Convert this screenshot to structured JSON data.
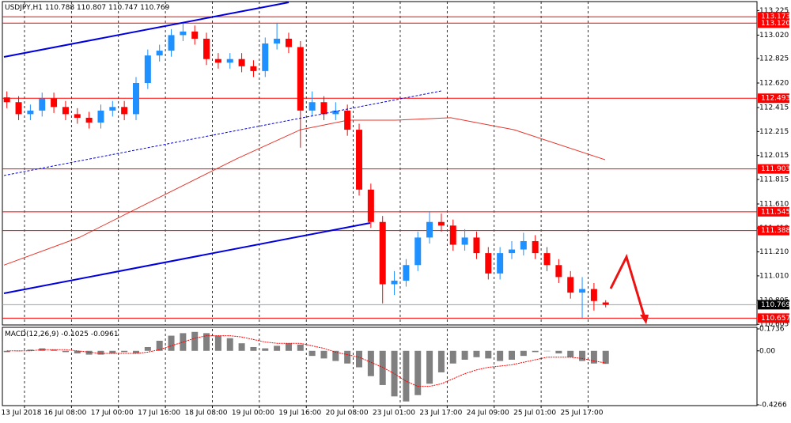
{
  "chart_data": [
    {
      "type": "candlestick",
      "symbol": "USDJPY,H1",
      "x": [
        -6,
        -2,
        2,
        6,
        10,
        14,
        18,
        22,
        26,
        30,
        34,
        38,
        42,
        46,
        50,
        54,
        58,
        62,
        66,
        70,
        74,
        78,
        82,
        86,
        90,
        94,
        98,
        102,
        106,
        110,
        114,
        118,
        122,
        126,
        130,
        134,
        138,
        142,
        146,
        150,
        154,
        158,
        162,
        166,
        170,
        174,
        178,
        182,
        186,
        190,
        194,
        198
      ],
      "open": [
        112.5,
        112.46,
        112.36,
        112.39,
        112.49,
        112.42,
        112.36,
        112.33,
        112.29,
        112.39,
        112.42,
        112.36,
        112.62,
        112.85,
        112.89,
        113.02,
        113.05,
        112.99,
        112.82,
        112.79,
        112.82,
        112.76,
        112.72,
        112.95,
        112.99,
        112.92,
        112.39,
        112.46,
        112.36,
        112.39,
        112.23,
        111.73,
        111.46,
        110.94,
        110.97,
        111.1,
        111.33,
        111.46,
        111.43,
        111.27,
        111.33,
        111.2,
        111.03,
        111.2,
        111.23,
        111.3,
        111.2,
        111.1,
        111.0,
        110.87,
        110.9,
        110.788
      ],
      "high": [
        112.55,
        112.51,
        112.44,
        112.54,
        112.54,
        112.47,
        112.41,
        112.38,
        112.44,
        112.47,
        112.47,
        112.67,
        112.9,
        112.94,
        113.07,
        113.12,
        113.1,
        113.04,
        112.87,
        112.87,
        112.87,
        112.81,
        113.0,
        113.12,
        113.04,
        112.97,
        112.55,
        112.51,
        112.46,
        112.44,
        112.28,
        111.78,
        111.51,
        111.05,
        111.15,
        111.38,
        111.55,
        111.53,
        111.48,
        111.4,
        111.38,
        111.25,
        111.25,
        111.3,
        111.37,
        111.35,
        111.25,
        111.15,
        111.05,
        111.0,
        110.95,
        110.807
      ],
      "low": [
        112.41,
        112.31,
        112.31,
        112.34,
        112.37,
        112.31,
        112.28,
        112.24,
        112.24,
        112.34,
        112.31,
        112.31,
        112.57,
        112.8,
        112.84,
        112.97,
        112.94,
        112.77,
        112.74,
        112.74,
        112.71,
        112.67,
        112.67,
        112.9,
        112.87,
        112.08,
        112.34,
        112.31,
        112.31,
        112.18,
        111.68,
        111.41,
        110.78,
        110.85,
        110.92,
        111.05,
        111.28,
        111.38,
        111.22,
        111.22,
        111.15,
        110.98,
        110.98,
        111.15,
        111.18,
        111.15,
        111.05,
        110.95,
        110.82,
        110.66,
        110.72,
        110.747
      ],
      "close": [
        112.46,
        112.36,
        112.39,
        112.49,
        112.42,
        112.36,
        112.33,
        112.29,
        112.39,
        112.42,
        112.36,
        112.62,
        112.85,
        112.89,
        113.02,
        113.05,
        112.99,
        112.82,
        112.79,
        112.82,
        112.76,
        112.72,
        112.95,
        112.99,
        112.92,
        112.39,
        112.46,
        112.36,
        112.39,
        112.23,
        111.73,
        111.46,
        110.94,
        110.97,
        111.1,
        111.33,
        111.46,
        111.43,
        111.27,
        111.33,
        111.2,
        111.03,
        111.2,
        111.23,
        111.3,
        111.2,
        111.1,
        111.0,
        110.87,
        110.9,
        110.8,
        110.769
      ],
      "up_color": "#1e90ff",
      "down_color": "#ff0000",
      "ma": {
        "x": [
          -7,
          18.6,
          45.5,
          72.5,
          94,
          110.2,
          126.4,
          145.2,
          166.8,
          197.8
        ],
        "values": [
          111.1,
          111.33,
          111.66,
          111.99,
          112.23,
          112.31,
          112.31,
          112.33,
          112.23,
          111.98
        ],
        "color": "#e8352b"
      },
      "levels": [
        113.173,
        {
          "value": 113.12,
          "label": "113.120"
        },
        112.493,
        111.903,
        111.545,
        111.388,
        110.657
      ],
      "level_color": "#ff0000",
      "xlim": [
        -7,
        249
      ],
      "ylim": [
        110.6,
        113.3
      ],
      "yticks": [
        113.225,
        {
          "value": 113.02,
          "label": "113.020"
        },
        112.825,
        {
          "value": 112.62,
          "label": "112.620"
        },
        112.415,
        112.215,
        112.015,
        111.815,
        {
          "value": 111.61,
          "label": "111.610"
        },
        {
          "value": 111.41,
          "label": "111.410"
        },
        {
          "value": 111.21,
          "label": "111.210"
        },
        {
          "value": 111.01,
          "label": "111.010"
        },
        110.805,
        110.605
      ],
      "grid": true
    },
    {
      "type": "macd",
      "title": "MACD(12,26,9)",
      "x": [
        -6,
        -2,
        2,
        6,
        10,
        14,
        18,
        22,
        26,
        30,
        34,
        38,
        42,
        46,
        50,
        54,
        58,
        62,
        66,
        70,
        74,
        78,
        82,
        86,
        90,
        94,
        98,
        102,
        106,
        110,
        114,
        118,
        122,
        126,
        130,
        134,
        138,
        142,
        146,
        150,
        154,
        158,
        162,
        166,
        170,
        174,
        178,
        182,
        186,
        190,
        194,
        198
      ],
      "values": [
        -0.01,
        0.0,
        0.01,
        0.02,
        0.01,
        -0.01,
        -0.02,
        -0.03,
        -0.03,
        -0.02,
        -0.01,
        -0.02,
        0.03,
        0.08,
        0.12,
        0.14,
        0.15,
        0.14,
        0.12,
        0.1,
        0.06,
        0.03,
        0.02,
        0.04,
        0.06,
        0.05,
        -0.04,
        -0.06,
        -0.08,
        -0.1,
        -0.13,
        -0.2,
        -0.27,
        -0.36,
        -0.4,
        -0.35,
        -0.26,
        -0.17,
        -0.1,
        -0.07,
        -0.05,
        -0.06,
        -0.08,
        -0.07,
        -0.04,
        -0.01,
        0.0,
        -0.02,
        -0.05,
        -0.08,
        -0.1,
        -0.1025
      ],
      "color": "#808080",
      "signal": {
        "values": [
          0.0,
          0.0,
          0.0,
          0.01,
          0.01,
          0.01,
          0.0,
          -0.01,
          -0.02,
          -0.02,
          -0.02,
          -0.02,
          -0.01,
          0.01,
          0.04,
          0.07,
          0.1,
          0.12,
          0.12,
          0.12,
          0.11,
          0.09,
          0.07,
          0.06,
          0.06,
          0.06,
          0.04,
          0.02,
          -0.01,
          -0.03,
          -0.05,
          -0.09,
          -0.13,
          -0.18,
          -0.24,
          -0.28,
          -0.28,
          -0.26,
          -0.22,
          -0.18,
          -0.15,
          -0.13,
          -0.12,
          -0.11,
          -0.09,
          -0.07,
          -0.05,
          -0.05,
          -0.05,
          -0.06,
          -0.08,
          -0.0961
        ],
        "color": "#ff0000"
      },
      "xlim": [
        -7,
        249
      ],
      "ylim": [
        -0.4266,
        0.1736
      ],
      "yticks": [
        0.1736,
        {
          "value": 0,
          "label": "0.00"
        },
        -0.4266
      ],
      "xticks": [
        {
          "value": 0,
          "label": "13 Jul 2018"
        },
        {
          "value": 16,
          "label": "16 Jul 08:00"
        },
        {
          "value": 32,
          "label": "17 Jul 00:00"
        },
        {
          "value": 48,
          "label": "17 Jul 16:00"
        },
        {
          "value": 64,
          "label": "18 Jul 08:00"
        },
        {
          "value": 80,
          "label": "19 Jul 00:00"
        },
        {
          "value": 96,
          "label": "19 Jul 16:00"
        },
        {
          "value": 112,
          "label": "20 Jul 08:00"
        },
        {
          "value": 128,
          "label": "23 Jul 01:00"
        },
        {
          "value": 144,
          "label": "23 Jul 17:00"
        },
        {
          "value": 160,
          "label": "24 Jul 09:00"
        },
        {
          "value": 176,
          "label": "25 Jul 01:00"
        },
        {
          "value": 192,
          "label": "25 Jul 17:00"
        }
      ],
      "grid": true
    }
  ]
}
